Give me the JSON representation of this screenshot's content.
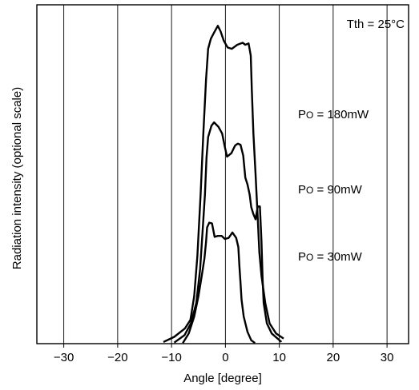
{
  "chart_data": {
    "type": "line",
    "xlabel": "Angle [degree]",
    "ylabel": "Radiation intensity (optional scale)",
    "xlim": [
      -35,
      34
    ],
    "ylim": [
      0,
      100
    ],
    "x_ticks": [
      -30,
      -20,
      -10,
      0,
      10,
      20,
      30
    ],
    "x_tick_labels": [
      "−30",
      "−20",
      "−10",
      "0",
      "10",
      "20",
      "30"
    ],
    "grid": "vertical",
    "annotation": "Tth = 25°C",
    "series": [
      {
        "name": "Po = 180mW",
        "label_prefix": "P",
        "label_sub": "O",
        "label_suffix": " = 180mW",
        "points": [
          [
            -11.5,
            0.5
          ],
          [
            -9.5,
            2
          ],
          [
            -7.5,
            4.5
          ],
          [
            -6.5,
            7
          ],
          [
            -5.8,
            14
          ],
          [
            -5.2,
            26
          ],
          [
            -4.6,
            44
          ],
          [
            -4.1,
            62
          ],
          [
            -3.6,
            78
          ],
          [
            -3.2,
            87
          ],
          [
            -2.7,
            90
          ],
          [
            -2.1,
            91.8
          ],
          [
            -1.4,
            93.8
          ],
          [
            -0.9,
            92.2
          ],
          [
            -0.3,
            89.4
          ],
          [
            0.4,
            87.4
          ],
          [
            1.2,
            87
          ],
          [
            2.2,
            88.2
          ],
          [
            3.2,
            88.8
          ],
          [
            3.7,
            88.2
          ],
          [
            4.3,
            88.6
          ],
          [
            4.7,
            85
          ],
          [
            4.9,
            75
          ],
          [
            5.2,
            62
          ],
          [
            5.6,
            50
          ],
          [
            6,
            37
          ],
          [
            6.3,
            27
          ],
          [
            6.7,
            20
          ],
          [
            7.4,
            12
          ],
          [
            8.2,
            6
          ],
          [
            9.4,
            3
          ],
          [
            10.8,
            1.5
          ]
        ]
      },
      {
        "name": "Po = 90mW",
        "label_prefix": "P",
        "label_sub": "O",
        "label_suffix": " = 90mW",
        "points": [
          [
            -9.5,
            0.3
          ],
          [
            -7.6,
            2.5
          ],
          [
            -6.4,
            6
          ],
          [
            -5.4,
            12
          ],
          [
            -4.7,
            22
          ],
          [
            -4.2,
            34
          ],
          [
            -3.8,
            44
          ],
          [
            -3.5,
            55
          ],
          [
            -3.2,
            61
          ],
          [
            -2.6,
            64.3
          ],
          [
            -2.1,
            65.3
          ],
          [
            -1.3,
            64
          ],
          [
            -0.6,
            62
          ],
          [
            -0.1,
            58
          ],
          [
            0.3,
            55.2
          ],
          [
            1.1,
            56.2
          ],
          [
            1.8,
            58.5
          ],
          [
            2.3,
            59
          ],
          [
            2.8,
            58.7
          ],
          [
            3.3,
            55.5
          ],
          [
            3.7,
            49
          ],
          [
            4.1,
            47
          ],
          [
            4.5,
            44
          ],
          [
            4.8,
            40.3
          ],
          [
            5.2,
            38.2
          ],
          [
            5.6,
            36.7
          ],
          [
            6.0,
            40.5
          ],
          [
            6.4,
            40.5
          ],
          [
            6.7,
            30
          ],
          [
            6.9,
            19
          ],
          [
            7.1,
            12
          ],
          [
            7.7,
            6
          ],
          [
            8.6,
            3
          ],
          [
            10.4,
            0.5
          ]
        ]
      },
      {
        "name": "Po = 30mW",
        "label_prefix": "P",
        "label_sub": "O",
        "label_suffix": " = 30mW",
        "points": [
          [
            -7.9,
            0.2
          ],
          [
            -6.8,
            3
          ],
          [
            -5.8,
            8
          ],
          [
            -5.0,
            14
          ],
          [
            -4.4,
            20
          ],
          [
            -3.9,
            25
          ],
          [
            -3.6,
            30
          ],
          [
            -3.4,
            34.3
          ],
          [
            -3.0,
            35.7
          ],
          [
            -2.5,
            35.5
          ],
          [
            -2.0,
            31.5
          ],
          [
            -1.4,
            31.8
          ],
          [
            -0.7,
            31.8
          ],
          [
            -0.1,
            30.9
          ],
          [
            0.6,
            31.2
          ],
          [
            1.3,
            32.8
          ],
          [
            2.0,
            31.2
          ],
          [
            2.4,
            28.5
          ],
          [
            2.6,
            23
          ],
          [
            2.8,
            18
          ],
          [
            3.0,
            13
          ],
          [
            3.4,
            8
          ],
          [
            4.1,
            3.5
          ],
          [
            4.8,
            1
          ],
          [
            5.5,
            0.2
          ]
        ]
      }
    ]
  }
}
